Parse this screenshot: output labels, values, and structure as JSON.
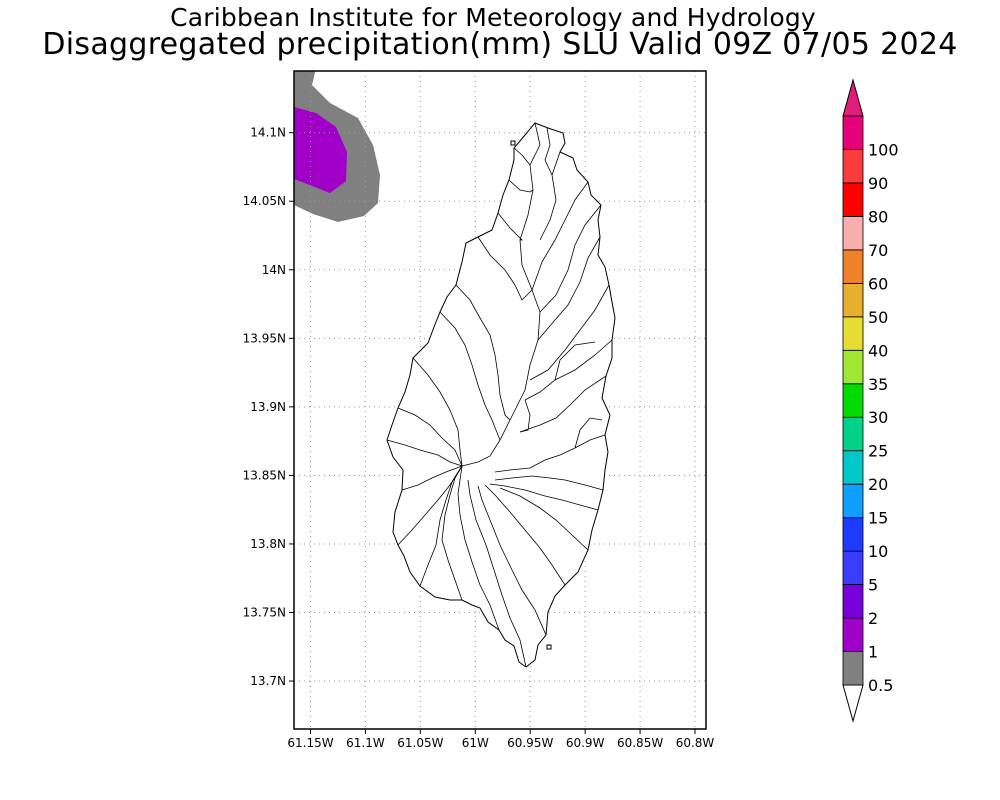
{
  "header": {
    "line1": "Caribbean Institute for Meteorology and Hydrology",
    "line2": "Disaggregated precipitation(mm) SLU Valid 09Z 07/05 2024"
  },
  "axes": {
    "lon_labels": [
      "61.15W",
      "61.1W",
      "61.05W",
      "61W",
      "60.95W",
      "60.9W",
      "60.85W",
      "60.8W"
    ],
    "lat_labels": [
      "14.1N",
      "14.05N",
      "14N",
      "13.95N",
      "13.9N",
      "13.85N",
      "13.8N",
      "13.75N",
      "13.7N"
    ],
    "lon_range": [
      -61.165,
      -60.79
    ],
    "lat_range": [
      13.665,
      14.145
    ]
  },
  "colorbar": {
    "labels": [
      "0.5",
      "1",
      "2",
      "5",
      "10",
      "15",
      "20",
      "25",
      "30",
      "35",
      "40",
      "50",
      "60",
      "70",
      "80",
      "90",
      "100"
    ],
    "colors": [
      "#808080",
      "#a000c8",
      "#7800dc",
      "#3c3cff",
      "#1e3cff",
      "#0fa0ff",
      "#00c8c8",
      "#00d28c",
      "#00dc00",
      "#a0e632",
      "#e6dc32",
      "#e6af2d",
      "#f08228",
      "#faafaf",
      "#ff0000",
      "#fa3c3c",
      "#e6007a"
    ],
    "overflow_color": "#e01e7a",
    "underflow_color": "#ffffff"
  },
  "precip_areas": [
    {
      "threshold": "0.5",
      "color": "#808080"
    },
    {
      "threshold": "1",
      "color": "#a000c8"
    }
  ]
}
